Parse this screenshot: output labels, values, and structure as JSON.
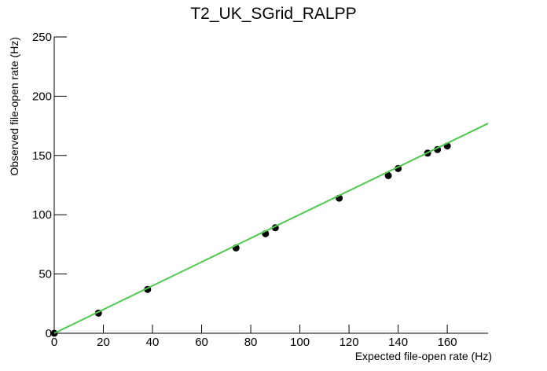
{
  "chart_data": {
    "type": "scatter",
    "title": "T2_UK_SGrid_RALPP",
    "x_label": "Expected file-open rate (Hz)",
    "y_label": "Observed file-open rate (Hz)",
    "series": [
      {
        "type": "scatter",
        "color": "#000000",
        "x": [
          0,
          18,
          38,
          74,
          86,
          90,
          116,
          136,
          140,
          152,
          156,
          160
        ],
        "values": [
          0,
          17,
          37,
          72,
          84,
          89,
          114,
          133,
          139,
          152,
          155,
          158
        ]
      },
      {
        "type": "line",
        "color": "#4fc94f",
        "x": [
          0,
          176.6
        ],
        "values": [
          0,
          177
        ]
      }
    ],
    "xlim": [
      0,
      176.6
    ],
    "ylim": [
      0,
      250
    ],
    "xticks": [
      0,
      20,
      40,
      60,
      80,
      100,
      120,
      140,
      160
    ],
    "yticks": [
      0,
      50,
      100,
      150,
      200,
      250
    ]
  }
}
